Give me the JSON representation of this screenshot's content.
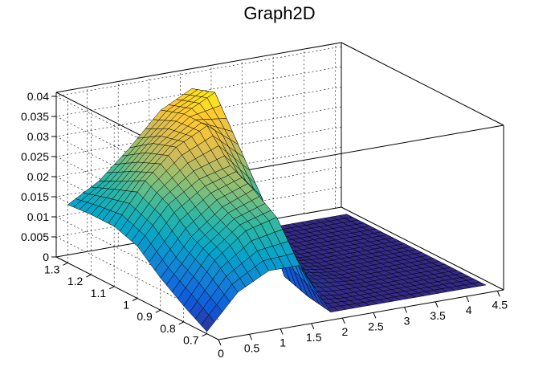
{
  "chart_data": {
    "type": "surface",
    "title": "Graph2D",
    "xlabel": "",
    "ylabel": "",
    "zlabel": "",
    "x_ticks": [
      "0",
      "0.5",
      "1",
      "1.5",
      "2",
      "2.5",
      "3",
      "3.5",
      "4",
      "4.5"
    ],
    "y_ticks": [
      "0.7",
      "0.8",
      "0.9",
      "1",
      "1.1",
      "1.2",
      "1.3"
    ],
    "z_ticks": [
      "0",
      "0.005",
      "0.01",
      "0.015",
      "0.02",
      "0.025",
      "0.03",
      "0.035",
      "0.04"
    ],
    "xlim": [
      0,
      4.6
    ],
    "ylim": [
      0.65,
      1.35
    ],
    "zlim": [
      0,
      0.041
    ],
    "grid": true,
    "palette": [
      "#352a87",
      "#0f5cdd",
      "#1481d6",
      "#06a4ca",
      "#2eb7a4",
      "#87bf77",
      "#d1bb59",
      "#fec832",
      "#f9fb0e"
    ],
    "x_grid": [
      0,
      0.5,
      1,
      1.5,
      2,
      2.5,
      3,
      3.5,
      4,
      4.5
    ],
    "y_grid": [
      0.7,
      0.8,
      0.9,
      1.0,
      1.1,
      1.2,
      1.3
    ],
    "z_values": [
      [
        0.0005,
        0.009,
        0.013,
        0.013,
        0.0,
        0.0,
        0.0,
        0.0,
        0.0,
        0.0
      ],
      [
        0.004,
        0.014,
        0.02,
        0.022,
        0.001,
        0.0,
        0.0,
        0.0,
        0.0,
        0.0
      ],
      [
        0.008,
        0.017,
        0.023,
        0.026,
        0.003,
        0.001,
        0.0,
        0.0,
        0.0,
        0.0
      ],
      [
        0.013,
        0.022,
        0.027,
        0.029,
        0.02,
        0.001,
        0.0,
        0.0,
        0.0,
        0.0
      ],
      [
        0.015,
        0.025,
        0.032,
        0.036,
        0.03,
        0.001,
        0.0,
        0.0,
        0.0,
        0.0
      ],
      [
        0.015,
        0.022,
        0.03,
        0.036,
        0.04,
        0.002,
        0.0,
        0.0,
        0.0,
        0.0
      ],
      [
        0.0145,
        0.019,
        0.026,
        0.034,
        0.038,
        0.001,
        0.0,
        0.0,
        0.0,
        0.0
      ]
    ]
  }
}
